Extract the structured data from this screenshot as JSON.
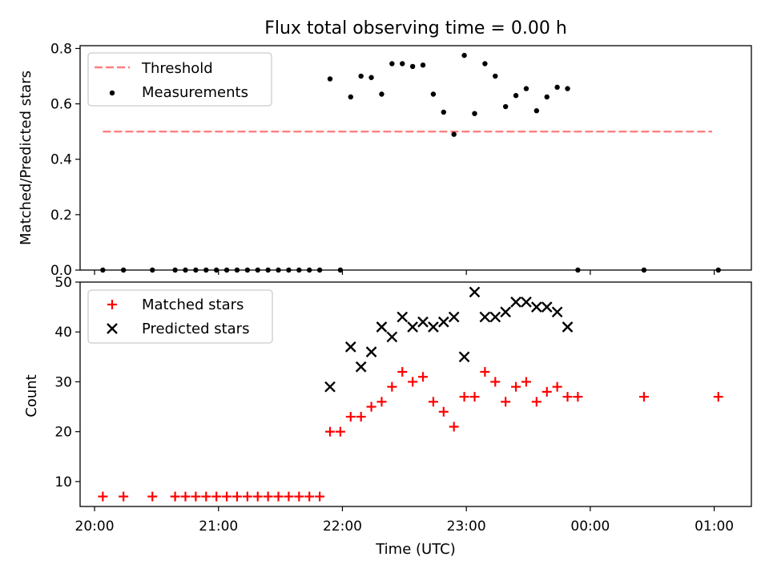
{
  "chart_data": [
    {
      "type": "scatter",
      "title": "Flux total observing time = 0.00 h",
      "xlabel": "",
      "ylabel": "Matched/Predicted stars",
      "xlim": [
        "19:53",
        "01:18"
      ],
      "ylim": [
        0,
        0.81
      ],
      "yticks": [
        "0.0",
        "0.2",
        "0.4",
        "0.6",
        "0.8"
      ],
      "yticks_values": [
        0,
        0.2,
        0.4,
        0.6,
        0.8
      ],
      "legend": {
        "placement": "top-left",
        "entries": [
          "Threshold",
          "Measurements"
        ]
      },
      "threshold": {
        "name": "Threshold",
        "value": 0.5,
        "x_start": "20:04",
        "x_end": "00:59",
        "color": "#ff7f7f",
        "style": "dashed"
      },
      "series": [
        {
          "name": "Measurements",
          "color": "#000000",
          "points": [
            [
              "20:04",
              0.0
            ],
            [
              "20:14",
              0.0
            ],
            [
              "20:28",
              0.0
            ],
            [
              "20:39",
              0.0
            ],
            [
              "20:44",
              0.0
            ],
            [
              "20:49",
              0.0
            ],
            [
              "20:54",
              0.0
            ],
            [
              "20:59",
              0.0
            ],
            [
              "21:04",
              0.0
            ],
            [
              "21:09",
              0.0
            ],
            [
              "21:14",
              0.0
            ],
            [
              "21:19",
              0.0
            ],
            [
              "21:24",
              0.0
            ],
            [
              "21:29",
              0.0
            ],
            [
              "21:34",
              0.0
            ],
            [
              "21:39",
              0.0
            ],
            [
              "21:44",
              0.0
            ],
            [
              "21:49",
              0.0
            ],
            [
              "21:54",
              0.69
            ],
            [
              "21:59",
              0.0
            ],
            [
              "22:04",
              0.625
            ],
            [
              "22:09",
              0.7
            ],
            [
              "22:14",
              0.695
            ],
            [
              "22:19",
              0.635
            ],
            [
              "22:24",
              0.745
            ],
            [
              "22:29",
              0.745
            ],
            [
              "22:34",
              0.735
            ],
            [
              "22:39",
              0.74
            ],
            [
              "22:44",
              0.635
            ],
            [
              "22:49",
              0.57
            ],
            [
              "22:54",
              0.49
            ],
            [
              "22:59",
              0.775
            ],
            [
              "23:04",
              0.565
            ],
            [
              "23:09",
              0.745
            ],
            [
              "23:14",
              0.7
            ],
            [
              "23:19",
              0.59
            ],
            [
              "23:24",
              0.63
            ],
            [
              "23:29",
              0.655
            ],
            [
              "23:34",
              0.575
            ],
            [
              "23:39",
              0.625
            ],
            [
              "23:44",
              0.66
            ],
            [
              "23:49",
              0.655
            ],
            [
              "23:54",
              0.0
            ],
            [
              "00:26",
              0.0
            ],
            [
              "01:02",
              0.0
            ]
          ]
        }
      ]
    },
    {
      "type": "scatter",
      "title": "",
      "xlabel": "Time (UTC)",
      "ylabel": "Count",
      "xlim": [
        "19:53",
        "01:18"
      ],
      "ylim": [
        5,
        50
      ],
      "yticks": [
        "10",
        "20",
        "30",
        "40",
        "50"
      ],
      "yticks_values": [
        10,
        20,
        30,
        40,
        50
      ],
      "xticks": [
        "20:00",
        "21:00",
        "22:00",
        "23:00",
        "00:00",
        "01:00"
      ],
      "legend": {
        "placement": "top-left",
        "entries": [
          "Matched stars",
          "Predicted stars"
        ]
      },
      "series": [
        {
          "name": "Matched stars",
          "marker": "plus",
          "color": "#ff0000",
          "points": [
            [
              "20:04",
              7
            ],
            [
              "20:14",
              7
            ],
            [
              "20:28",
              7
            ],
            [
              "20:39",
              7
            ],
            [
              "20:44",
              7
            ],
            [
              "20:49",
              7
            ],
            [
              "20:54",
              7
            ],
            [
              "20:59",
              7
            ],
            [
              "21:04",
              7
            ],
            [
              "21:09",
              7
            ],
            [
              "21:14",
              7
            ],
            [
              "21:19",
              7
            ],
            [
              "21:24",
              7
            ],
            [
              "21:29",
              7
            ],
            [
              "21:34",
              7
            ],
            [
              "21:39",
              7
            ],
            [
              "21:44",
              7
            ],
            [
              "21:49",
              7
            ],
            [
              "21:54",
              20
            ],
            [
              "21:59",
              20
            ],
            [
              "22:04",
              23
            ],
            [
              "22:09",
              23
            ],
            [
              "22:14",
              25
            ],
            [
              "22:19",
              26
            ],
            [
              "22:24",
              29
            ],
            [
              "22:29",
              32
            ],
            [
              "22:34",
              30
            ],
            [
              "22:39",
              31
            ],
            [
              "22:44",
              26
            ],
            [
              "22:49",
              24
            ],
            [
              "22:54",
              21
            ],
            [
              "22:59",
              27
            ],
            [
              "23:04",
              27
            ],
            [
              "23:09",
              32
            ],
            [
              "23:14",
              30
            ],
            [
              "23:19",
              26
            ],
            [
              "23:24",
              29
            ],
            [
              "23:29",
              30
            ],
            [
              "23:34",
              26
            ],
            [
              "23:39",
              28
            ],
            [
              "23:44",
              29
            ],
            [
              "23:49",
              27
            ],
            [
              "23:54",
              27
            ],
            [
              "00:26",
              27
            ],
            [
              "01:02",
              27
            ]
          ]
        },
        {
          "name": "Predicted stars",
          "marker": "x",
          "color": "#000000",
          "points": [
            [
              "21:54",
              29
            ],
            [
              "22:04",
              37
            ],
            [
              "22:09",
              33
            ],
            [
              "22:14",
              36
            ],
            [
              "22:19",
              41
            ],
            [
              "22:24",
              39
            ],
            [
              "22:29",
              43
            ],
            [
              "22:34",
              41
            ],
            [
              "22:39",
              42
            ],
            [
              "22:44",
              41
            ],
            [
              "22:49",
              42
            ],
            [
              "22:54",
              43
            ],
            [
              "22:59",
              35
            ],
            [
              "23:04",
              48
            ],
            [
              "23:09",
              43
            ],
            [
              "23:14",
              43
            ],
            [
              "23:19",
              44
            ],
            [
              "23:24",
              46
            ],
            [
              "23:29",
              46
            ],
            [
              "23:34",
              45
            ],
            [
              "23:39",
              45
            ],
            [
              "23:44",
              44
            ],
            [
              "23:49",
              41
            ]
          ]
        }
      ]
    }
  ]
}
